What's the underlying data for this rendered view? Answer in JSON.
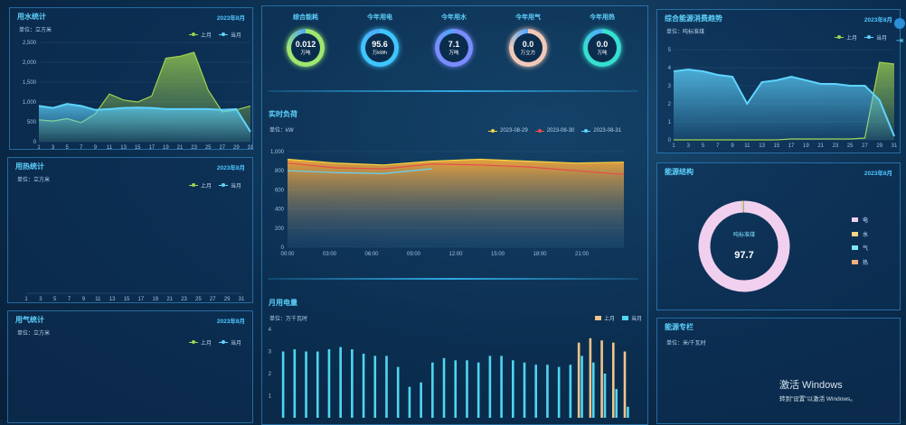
{
  "water": {
    "title": "用水统计",
    "date": "2023年8月",
    "unit": "单位：立方米",
    "legend": [
      "上月",
      "当月"
    ],
    "yticks": [
      "0",
      "500",
      "1,000",
      "1,500",
      "2,000",
      "2,500"
    ],
    "xticks": [
      "1",
      "3",
      "5",
      "7",
      "9",
      "11",
      "13",
      "15",
      "17",
      "19",
      "21",
      "23",
      "25",
      "27",
      "29",
      "31"
    ],
    "colors": {
      "last": "#9fd34e",
      "current": "#5fd4ff"
    }
  },
  "heat": {
    "title": "用热统计",
    "date": "2023年8月",
    "unit": "单位：立方米",
    "legend": [
      "上月",
      "当月"
    ],
    "xticks": [
      "1",
      "3",
      "5",
      "7",
      "9",
      "11",
      "13",
      "15",
      "17",
      "19",
      "21",
      "23",
      "25",
      "27",
      "29",
      "31"
    ]
  },
  "gas": {
    "title": "用气统计",
    "date": "2023年8月",
    "unit": "单位：立方米",
    "legend": [
      "上月",
      "当月"
    ]
  },
  "kpis": [
    {
      "label": "综合能耗",
      "value": "0.012",
      "unit": "万吨",
      "color": "#9fe870"
    },
    {
      "label": "今年用电",
      "value": "95.6",
      "unit": "万kWh",
      "color": "#3fc6ff"
    },
    {
      "label": "今年用水",
      "value": "7.1",
      "unit": "万吨",
      "color": "#7a8cff"
    },
    {
      "label": "今年用气",
      "value": "0.0",
      "unit": "万立方",
      "color": "#f2c9b8"
    },
    {
      "label": "今年用热",
      "value": "0.0",
      "unit": "万吨",
      "color": "#35e0d0"
    }
  ],
  "load": {
    "title": "实时负荷",
    "unit": "单位：kW",
    "legend": [
      "2023-08-29",
      "2023-08-30",
      "2023-08-31"
    ],
    "legend_colors": [
      "#f5d443",
      "#e84c4c",
      "#5fd4ff"
    ],
    "yticks": [
      "0",
      "200",
      "400",
      "600",
      "800",
      "1,000"
    ],
    "xticks": [
      "00:00",
      "03:00",
      "06:00",
      "09:00",
      "12:00",
      "15:00",
      "18:00",
      "21:00"
    ]
  },
  "elec": {
    "title": "月用电量",
    "unit": "单位：万千瓦时",
    "legend": [
      "上月",
      "当月"
    ],
    "legend_colors": [
      "#f2c48a",
      "#4fd6f0"
    ],
    "yticks": [
      "1",
      "2",
      "3",
      "4"
    ]
  },
  "trend": {
    "title": "综合能源消费趋势",
    "date": "2023年8月",
    "unit": "单位：吨标准煤",
    "legend": [
      "上月",
      "当月"
    ],
    "yticks": [
      "0",
      "1",
      "2",
      "3",
      "4",
      "5"
    ],
    "xticks": [
      "1",
      "3",
      "5",
      "7",
      "9",
      "11",
      "13",
      "15",
      "17",
      "19",
      "21",
      "23",
      "25",
      "27",
      "29",
      "31"
    ]
  },
  "structure": {
    "title": "能源结构",
    "date": "2023年8月",
    "center_label": "吨标准煤",
    "center_value": "97.7",
    "items": [
      {
        "label": "电",
        "color": "#f1d0ef"
      },
      {
        "label": "水",
        "color": "#f3d68a"
      },
      {
        "label": "气",
        "color": "#7fe6f0"
      },
      {
        "label": "热",
        "color": "#f2b07a"
      }
    ]
  },
  "ranking": {
    "title": "能源专栏",
    "unit": "单位：米/千瓦时"
  },
  "watermark": {
    "line1": "激活 Windows",
    "line2": "转到\"设置\"以激活 Windows。"
  },
  "chart_data": [
    {
      "type": "area",
      "title": "用水统计",
      "ylim": [
        0,
        2500
      ],
      "x": [
        1,
        3,
        5,
        7,
        9,
        11,
        13,
        15,
        17,
        19,
        21,
        23,
        25,
        27,
        29,
        31
      ],
      "series": [
        {
          "name": "上月",
          "values": [
            550,
            520,
            580,
            480,
            700,
            1200,
            1050,
            1000,
            1150,
            2100,
            2150,
            2250,
            1300,
            750,
            800,
            900
          ]
        },
        {
          "name": "当月",
          "values": [
            900,
            850,
            950,
            900,
            800,
            820,
            850,
            860,
            850,
            820,
            820,
            820,
            820,
            800,
            820,
            250
          ]
        }
      ]
    },
    {
      "type": "line",
      "title": "实时负荷",
      "ylim": [
        0,
        1000
      ],
      "x": [
        "00:00",
        "03:00",
        "06:00",
        "09:00",
        "12:00",
        "15:00",
        "18:00",
        "21:00"
      ],
      "series": [
        {
          "name": "2023-08-29",
          "values": [
            920,
            880,
            860,
            900,
            920,
            900,
            880,
            890
          ]
        },
        {
          "name": "2023-08-30",
          "values": [
            880,
            830,
            820,
            870,
            860,
            840,
            800,
            760
          ]
        },
        {
          "name": "2023-08-31",
          "values": [
            800,
            780,
            770,
            820,
            null,
            null,
            null,
            null
          ]
        }
      ]
    },
    {
      "type": "bar",
      "title": "月用电量",
      "ylim": [
        0,
        4
      ],
      "series": [
        {
          "name": "上月",
          "values": [
            0,
            0,
            0,
            0,
            0,
            0,
            0,
            0,
            0,
            0,
            0,
            0,
            0,
            0,
            0,
            0,
            0,
            0,
            0,
            0,
            0,
            0,
            0,
            0,
            0,
            0,
            3.4,
            3.6,
            3.5,
            3.4,
            3.0
          ]
        },
        {
          "name": "当月",
          "values": [
            3.0,
            3.1,
            3.0,
            3.0,
            3.1,
            3.2,
            3.1,
            2.9,
            2.8,
            2.8,
            2.3,
            1.4,
            1.6,
            2.5,
            2.7,
            2.6,
            2.6,
            2.5,
            2.8,
            2.8,
            2.6,
            2.5,
            2.4,
            2.4,
            2.3,
            2.4,
            2.8,
            2.5,
            2.0,
            1.3,
            0.5
          ]
        }
      ]
    },
    {
      "type": "line",
      "title": "综合能源消费趋势",
      "ylim": [
        0,
        5
      ],
      "x": [
        1,
        3,
        5,
        7,
        9,
        11,
        13,
        15,
        17,
        19,
        21,
        23,
        25,
        27,
        29,
        31
      ],
      "series": [
        {
          "name": "上月",
          "values": [
            0,
            0,
            0,
            0,
            0,
            0,
            0,
            0,
            0.05,
            0.05,
            0.05,
            0.05,
            0.05,
            0.1,
            4.3,
            4.2
          ]
        },
        {
          "name": "当月",
          "values": [
            3.8,
            3.9,
            3.8,
            3.6,
            3.5,
            2.0,
            3.2,
            3.3,
            3.5,
            3.3,
            3.1,
            3.1,
            3.0,
            3.0,
            2.2,
            0.2
          ]
        }
      ]
    },
    {
      "type": "pie",
      "title": "能源结构",
      "categories": [
        "电",
        "水",
        "气",
        "热"
      ],
      "values": [
        97.2,
        0.5,
        0.2,
        0.1
      ]
    }
  ]
}
